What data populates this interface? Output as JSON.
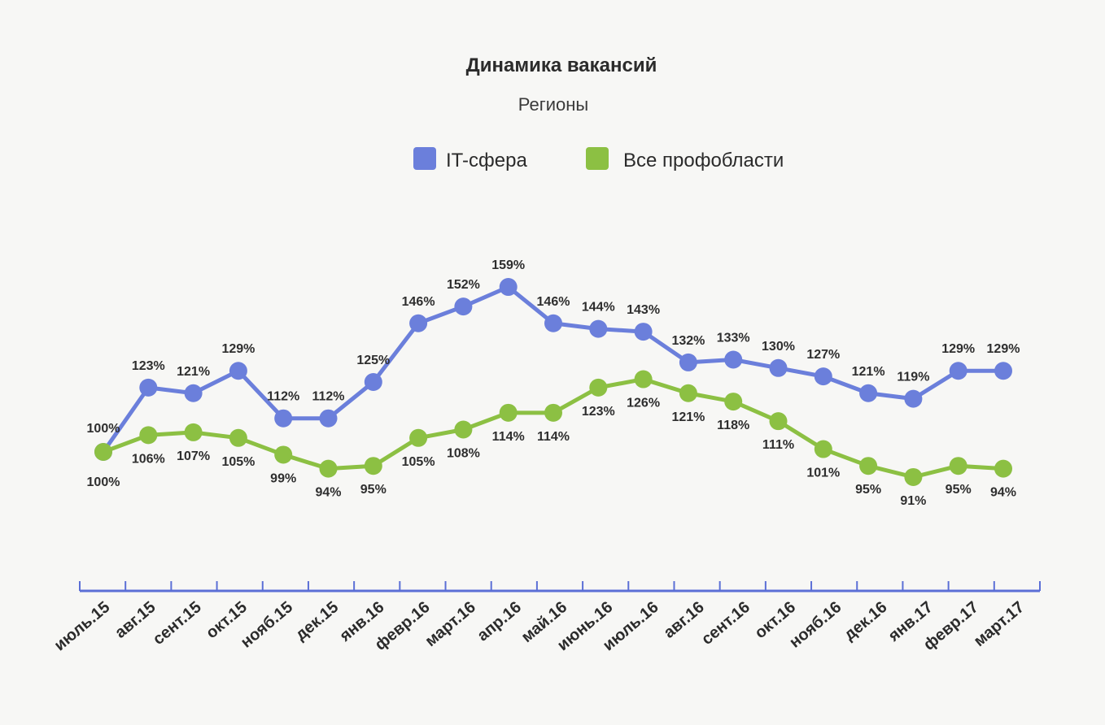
{
  "chart_data": {
    "type": "line",
    "title": "Динамика вакансий",
    "subtitle": "Регионы",
    "categories": [
      "июль.15",
      "авг.15",
      "сент.15",
      "окт.15",
      "нояб.15",
      "дек.15",
      "янв.16",
      "февр.16",
      "март.16",
      "апр.16",
      "май.16",
      "июнь.16",
      "июль.16",
      "авг.16",
      "сент.16",
      "окт.16",
      "нояб.16",
      "дек.16",
      "янв.17",
      "февр.17",
      "март.17"
    ],
    "series": [
      {
        "name": "IT-сфера",
        "color": "#6b7fdb",
        "values": [
          100,
          123,
          121,
          129,
          112,
          112,
          125,
          146,
          152,
          159,
          146,
          144,
          143,
          132,
          133,
          130,
          127,
          121,
          119,
          129,
          129
        ],
        "labels": [
          "100%",
          "123%",
          "121%",
          "129%",
          "112%",
          "112%",
          "125%",
          "146%",
          "152%",
          "159%",
          "146%",
          "144%",
          "143%",
          "132%",
          "133%",
          "130%",
          "127%",
          "121%",
          "119%",
          "129%",
          "129%"
        ]
      },
      {
        "name": "Все профобласти",
        "color": "#8cc043",
        "values": [
          100,
          106,
          107,
          105,
          99,
          94,
          95,
          105,
          108,
          114,
          114,
          123,
          126,
          121,
          118,
          111,
          101,
          95,
          91,
          95,
          94
        ],
        "labels": [
          "100%",
          "106%",
          "107%",
          "105%",
          "99%",
          "94%",
          "95%",
          "105%",
          "108%",
          "114%",
          "114%",
          "123%",
          "126%",
          "121%",
          "118%",
          "111%",
          "101%",
          "95%",
          "91%",
          "95%",
          "94%"
        ]
      }
    ],
    "axis_color": "#5b6fd6",
    "grid": false,
    "legend_position": "top-center"
  }
}
